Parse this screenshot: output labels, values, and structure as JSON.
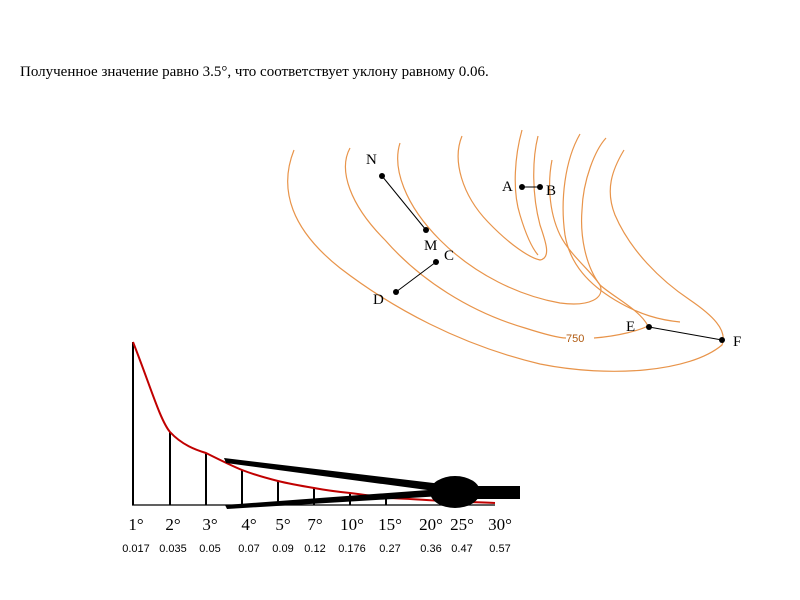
{
  "caption": "Полученное значение равно 3.5°, что соответствует уклону равному 0.06.",
  "contour_label": "750",
  "points": {
    "N": "N",
    "M": "M",
    "A": "A",
    "B": "B",
    "C": "C",
    "D": "D",
    "E": "E",
    "F": "F"
  },
  "scale": {
    "degrees": [
      "1°",
      "2°",
      "3°",
      "4°",
      "5°",
      "7°",
      "10°",
      "15°",
      "20°",
      "25°",
      "30°"
    ],
    "slopes": [
      "0.017",
      "0.035",
      "0.05",
      "0.07",
      "0.09",
      "0.12",
      "0.176",
      "0.27",
      "0.36",
      "0.47",
      "0.57"
    ]
  },
  "colors": {
    "contour": "#e8944a",
    "curve": "#c00000",
    "ink": "#000000"
  }
}
